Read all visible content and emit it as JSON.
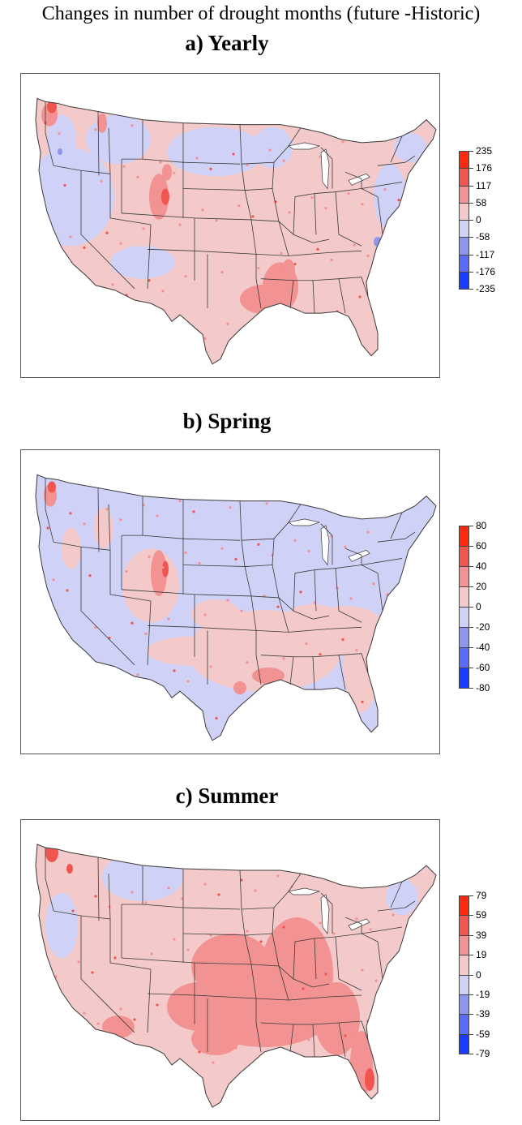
{
  "figure_title": "Changes in number of drought months (future -Historic)",
  "colors": {
    "neg4": "#1a3cff",
    "neg3": "#5a6cf5",
    "neg2": "#8c95f0",
    "neg1": "#cfd2f6",
    "pos1": "#f3c9c9",
    "pos2": "#f39292",
    "pos3": "#f0564f",
    "pos4": "#ff2a10",
    "border": "#3a3a3a"
  },
  "panels": [
    {
      "title": "a) Yearly",
      "legend": [
        "235",
        "176",
        "117",
        "58",
        "0",
        "-58",
        "-117",
        "-176",
        "-235"
      ]
    },
    {
      "title": "b) Spring",
      "legend": [
        "80",
        "60",
        "40",
        "20",
        "0",
        "-20",
        "-40",
        "-60",
        "-80"
      ]
    },
    {
      "title": "c) Summer",
      "legend": [
        "79",
        "59",
        "39",
        "19",
        "0",
        "-19",
        "-39",
        "-59",
        "-79"
      ]
    }
  ]
}
